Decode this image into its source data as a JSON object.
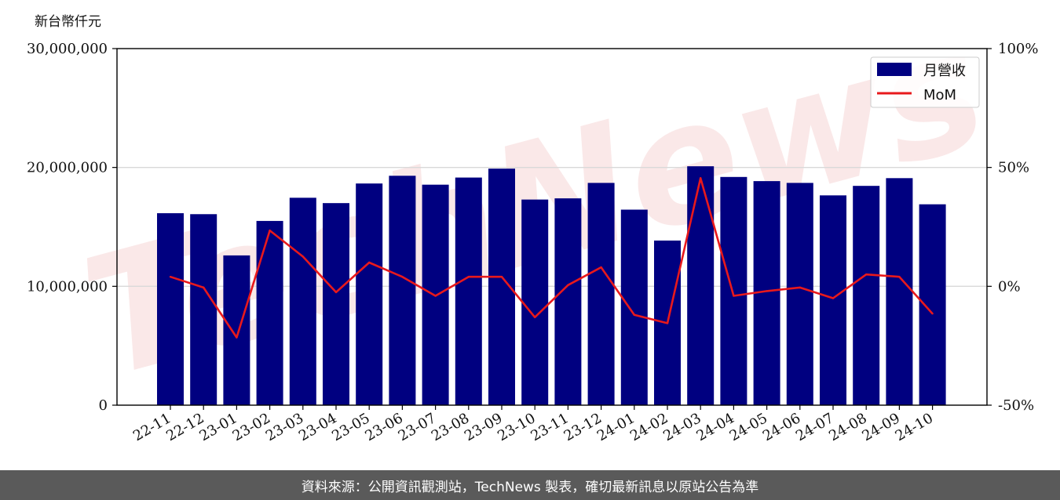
{
  "chart_data": {
    "type": "bar",
    "unit_label": "新台幣仟元",
    "categories": [
      "22-11",
      "22-12",
      "23-01",
      "23-02",
      "23-03",
      "23-04",
      "23-05",
      "23-06",
      "23-07",
      "23-08",
      "23-09",
      "23-10",
      "23-11",
      "23-12",
      "24-01",
      "24-02",
      "24-03",
      "24-04",
      "24-05",
      "24-06",
      "24-07",
      "24-08",
      "24-09",
      "24-10"
    ],
    "series": [
      {
        "name": "月營收",
        "type": "bar",
        "axis": "left",
        "color": "#000080",
        "values": [
          16150000,
          16070000,
          12600000,
          15500000,
          17450000,
          17000000,
          18650000,
          19300000,
          18550000,
          19150000,
          19900000,
          17300000,
          17400000,
          18700000,
          16450000,
          13850000,
          20100000,
          19200000,
          18850000,
          18700000,
          17650000,
          18450000,
          19100000,
          16900000
        ]
      },
      {
        "name": "MoM",
        "type": "line",
        "axis": "right",
        "color": "#e8191c",
        "values": [
          4,
          -0.5,
          -21.5,
          23.5,
          12.5,
          -2.5,
          10,
          4,
          -4,
          4,
          4,
          -13,
          0.5,
          8,
          -12,
          -15.5,
          45.5,
          -4,
          -2,
          -0.5,
          -5,
          5,
          4,
          -11.5
        ]
      }
    ],
    "y_left": {
      "ylim": [
        0,
        30000000
      ],
      "ticks": [
        "0",
        "10,000,000",
        "20,000,000",
        "30,000,000"
      ],
      "tick_values": [
        0,
        10000000,
        20000000,
        30000000
      ]
    },
    "y_right": {
      "ylim": [
        -50,
        100
      ],
      "ticks": [
        "-50%",
        "0%",
        "50%",
        "100%"
      ],
      "tick_values": [
        -50,
        0,
        50,
        100
      ]
    },
    "grid": "horizontal",
    "legend_position": "top-right",
    "watermark": "TechNews"
  },
  "footer": {
    "text": "資料來源：公開資訊觀測站，TechNews 製表，確切最新訊息以原站公告為準"
  }
}
